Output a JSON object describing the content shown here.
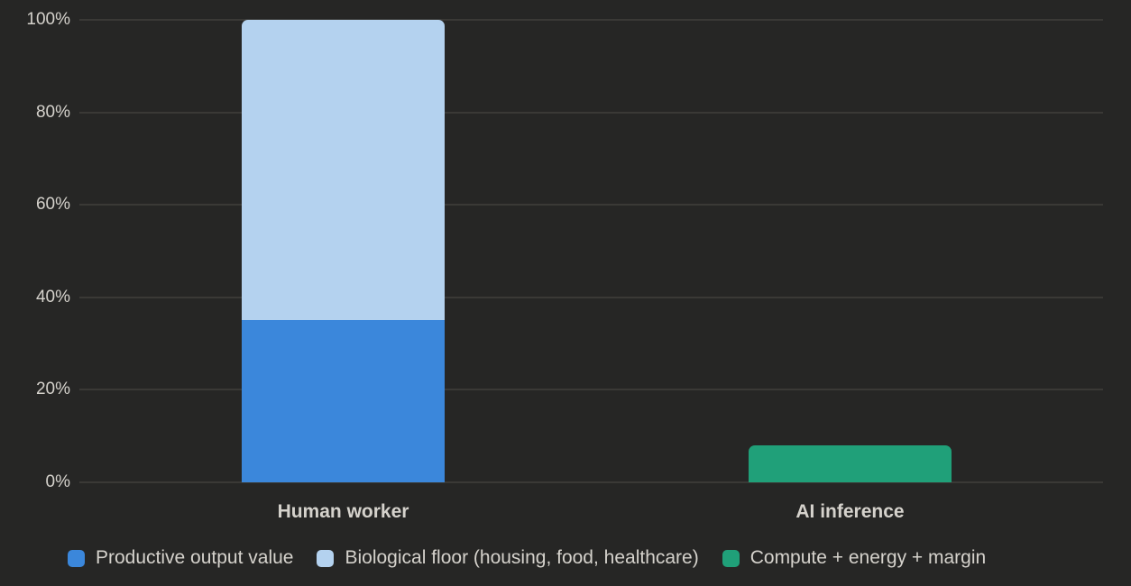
{
  "page": {
    "background_color": "#262625",
    "text_color": "#d5d2cc",
    "gridline_color": "#3a3936"
  },
  "chart_data": {
    "type": "bar",
    "stacked": true,
    "categories": [
      "Human worker",
      "AI inference"
    ],
    "series": [
      {
        "name": "Productive output value",
        "color": "#3b87db",
        "values": [
          35,
          0
        ]
      },
      {
        "name": "Biological floor (housing, food, healthcare)",
        "color": "#b4d2ef",
        "values": [
          65,
          0
        ]
      },
      {
        "name": "Compute + energy + margin",
        "color": "#20a079",
        "values": [
          0,
          8
        ]
      }
    ],
    "ylabel": "",
    "xlabel": "",
    "ylim": [
      0,
      100
    ],
    "y_tick_values": [
      0,
      20,
      40,
      60,
      80,
      100
    ],
    "y_tick_labels": [
      "0%",
      "20%",
      "40%",
      "60%",
      "80%",
      "100%"
    ],
    "grid": true,
    "legend_position": "bottom"
  }
}
